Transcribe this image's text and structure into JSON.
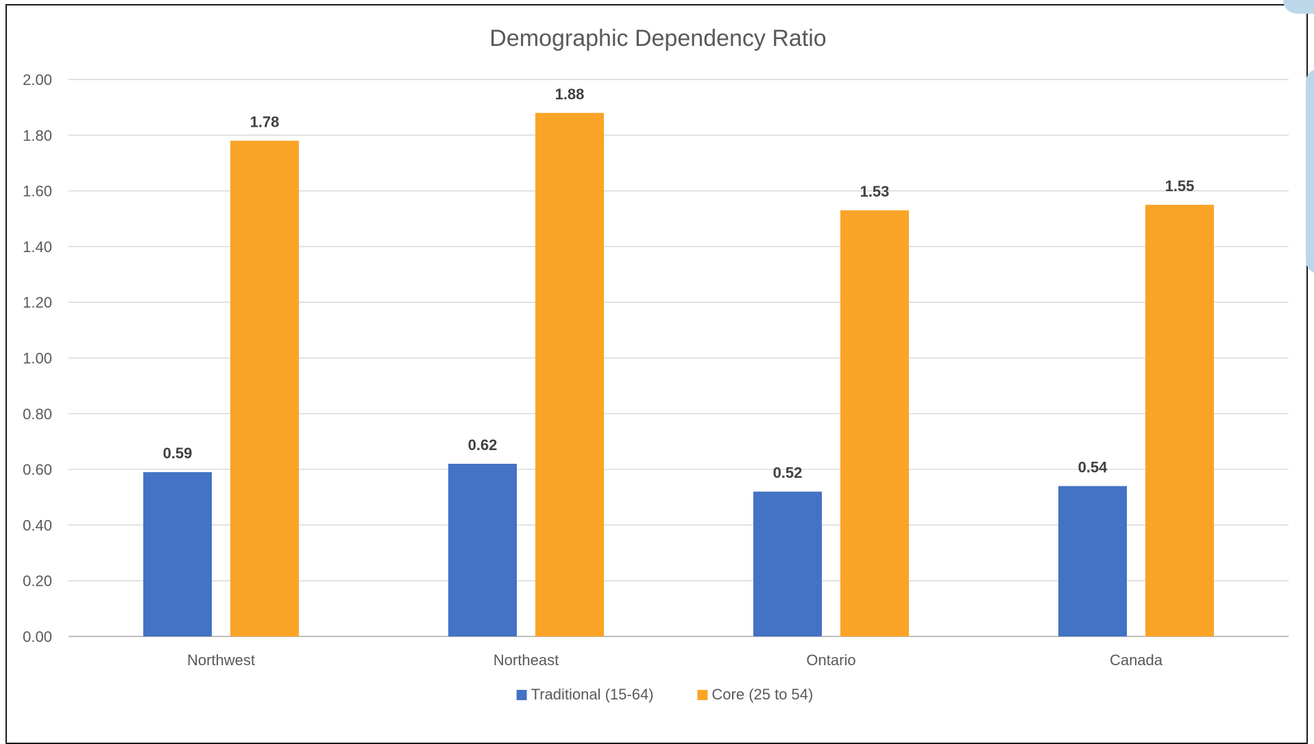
{
  "chart_data": {
    "type": "bar",
    "title": "Demographic Dependency Ratio",
    "xlabel": "",
    "ylabel": "",
    "categories": [
      "Northwest",
      "Northeast",
      "Ontario",
      "Canada"
    ],
    "series": [
      {
        "name": "Traditional (15-64)",
        "color": "#4472C4",
        "values": [
          0.59,
          0.62,
          0.52,
          0.54
        ],
        "labels": [
          "0.59",
          "0.62",
          "0.52",
          "0.54"
        ]
      },
      {
        "name": "Core (25 to 54)",
        "color": "#FAA427",
        "values": [
          1.78,
          1.88,
          1.53,
          1.55
        ],
        "labels": [
          "1.78",
          "1.88",
          "1.53",
          "1.55"
        ]
      }
    ],
    "ylim": [
      0,
      2.0
    ],
    "yticks": [
      "0.00",
      "0.20",
      "0.40",
      "0.60",
      "0.80",
      "1.00",
      "1.20",
      "1.40",
      "1.60",
      "1.80",
      "2.00"
    ],
    "grid": true,
    "legend": "bottom"
  }
}
